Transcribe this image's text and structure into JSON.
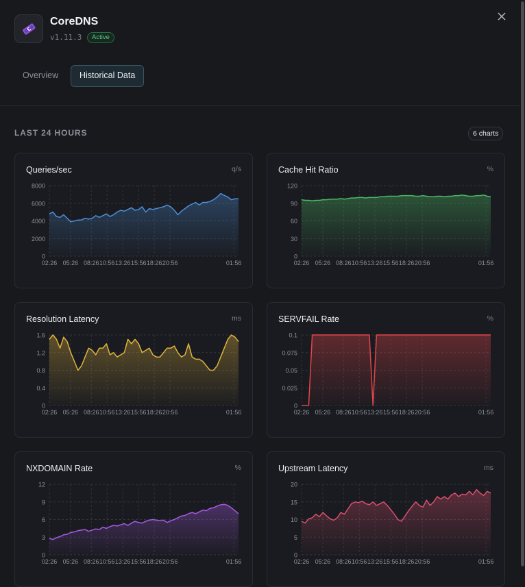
{
  "app": {
    "name": "CoreDNS",
    "version": "v1.11.3",
    "status": "Active",
    "logo_icon": "coredns-logo-icon"
  },
  "tabs": [
    {
      "label": "Overview",
      "active": false
    },
    {
      "label": "Historical Data",
      "active": true
    }
  ],
  "section": {
    "title": "LAST 24 HOURS",
    "count_label": "6 charts"
  },
  "colors": {
    "accent": "#1e2b33",
    "active_badge": "#58c98b"
  },
  "chart_data": [
    {
      "type": "area",
      "title": "Queries/sec",
      "unit": "q/s",
      "color": "#4c8fd8",
      "yticks": [
        0,
        2000,
        4000,
        6000,
        8000
      ],
      "ylim": [
        0,
        8000
      ],
      "xticks": [
        "02:26",
        "05:26",
        "08:26",
        "10:56",
        "13:26",
        "15:56",
        "18:26",
        "20:56",
        "01:56"
      ],
      "values": [
        4800,
        5000,
        4500,
        4400,
        4700,
        4300,
        3900,
        4000,
        4100,
        4100,
        4300,
        4200,
        4300,
        4600,
        4400,
        4600,
        4800,
        4500,
        4700,
        5000,
        5200,
        5100,
        5300,
        5500,
        5200,
        5300,
        5600,
        5000,
        5400,
        5300,
        5400,
        5500,
        5600,
        5800,
        5600,
        5200,
        4700,
        5100,
        5400,
        5700,
        5900,
        6100,
        5800,
        6100,
        6100,
        6200,
        6400,
        6700,
        7100,
        6900,
        6700,
        6400,
        6500,
        6500
      ]
    },
    {
      "type": "area",
      "title": "Cache Hit Ratio",
      "unit": "%",
      "color": "#4cba63",
      "yticks": [
        0,
        30,
        60,
        90,
        120
      ],
      "ylim": [
        0,
        120
      ],
      "xticks": [
        "02:26",
        "05:26",
        "08:26",
        "10:56",
        "13:26",
        "15:56",
        "18:26",
        "20:56",
        "01:56"
      ],
      "values": [
        96,
        95,
        95,
        94,
        95,
        95,
        96,
        96,
        97,
        97,
        97,
        98,
        97,
        98,
        99,
        99,
        100,
        100,
        99,
        100,
        100,
        100,
        101,
        101,
        102,
        102,
        102,
        102,
        103,
        103,
        103,
        103,
        102,
        102,
        103,
        102,
        101,
        101,
        102,
        102,
        101,
        102,
        102,
        103,
        103,
        104,
        103,
        102,
        102,
        103,
        103,
        104,
        102,
        101
      ]
    },
    {
      "type": "area",
      "title": "Resolution Latency",
      "unit": "ms",
      "color": "#e0b43c",
      "yticks": [
        0,
        0.4,
        0.8,
        1.2,
        1.6
      ],
      "ylim": [
        0,
        1.6
      ],
      "xticks": [
        "02:26",
        "05:26",
        "08:26",
        "10:56",
        "13:26",
        "15:56",
        "18:26",
        "20:56",
        "01:56"
      ],
      "values": [
        1.5,
        1.6,
        1.5,
        1.3,
        1.55,
        1.45,
        1.2,
        1.0,
        0.8,
        0.9,
        1.1,
        1.3,
        1.25,
        1.15,
        1.3,
        1.3,
        1.4,
        1.15,
        1.2,
        1.1,
        1.15,
        1.2,
        1.5,
        1.4,
        1.5,
        1.4,
        1.2,
        1.25,
        1.3,
        1.15,
        1.1,
        1.1,
        1.2,
        1.3,
        1.3,
        1.35,
        1.2,
        1.1,
        1.15,
        1.4,
        1.1,
        1.05,
        1.05,
        1.0,
        0.9,
        0.8,
        0.8,
        0.9,
        1.1,
        1.3,
        1.5,
        1.6,
        1.55,
        1.45
      ]
    },
    {
      "type": "line",
      "title": "SERVFAIL Rate",
      "unit": "%",
      "color": "#e0454a",
      "yticks": [
        0,
        0.025,
        0.05,
        0.075,
        0.1
      ],
      "ylim": [
        0,
        0.1
      ],
      "xticks": [
        "02:26",
        "05:26",
        "08:26",
        "10:56",
        "13:26",
        "15:56",
        "18:26",
        "20:56",
        "01:56"
      ],
      "values": [
        0,
        0,
        0,
        0.1,
        0.1,
        0.1,
        0.1,
        0.1,
        0.1,
        0.1,
        0.1,
        0.1,
        0.1,
        0.1,
        0.1,
        0.1,
        0.1,
        0.1,
        0.1,
        0.1,
        0,
        0.1,
        0.1,
        0.1,
        0.1,
        0.1,
        0.1,
        0.1,
        0.1,
        0.1,
        0.1,
        0.1,
        0.1,
        0.1,
        0.1,
        0.1,
        0.1,
        0.1,
        0.1,
        0.1,
        0.1,
        0.1,
        0.1,
        0.1,
        0.1,
        0.1,
        0.1,
        0.1,
        0.1,
        0.1,
        0.1,
        0.1,
        0.1,
        0.1
      ]
    },
    {
      "type": "area",
      "title": "NXDOMAIN Rate",
      "unit": "%",
      "color": "#a55be2",
      "yticks": [
        0,
        3,
        6,
        9,
        12
      ],
      "ylim": [
        0,
        12
      ],
      "xticks": [
        "02:26",
        "05:26",
        "08:26",
        "10:56",
        "13:26",
        "15:56",
        "18:26",
        "20:56",
        "01:56"
      ],
      "values": [
        2.8,
        2.6,
        2.9,
        3.1,
        3.4,
        3.5,
        3.8,
        3.9,
        4.1,
        4.2,
        4.3,
        4.0,
        4.2,
        4.4,
        4.3,
        4.7,
        4.5,
        4.8,
        5.0,
        4.9,
        5.1,
        5.3,
        5.0,
        5.4,
        5.7,
        5.5,
        5.4,
        5.7,
        5.9,
        6.0,
        5.9,
        5.8,
        5.9,
        5.5,
        5.8,
        6.0,
        6.3,
        6.6,
        6.7,
        7.0,
        7.2,
        7.0,
        7.3,
        7.6,
        7.5,
        7.9,
        8.0,
        8.3,
        8.5,
        8.6,
        8.4,
        8.0,
        7.5,
        7.0
      ]
    },
    {
      "type": "area",
      "title": "Upstream Latency",
      "unit": "ms",
      "color": "#d8506e",
      "yticks": [
        0,
        5,
        10,
        15,
        20
      ],
      "ylim": [
        0,
        20
      ],
      "xticks": [
        "02:26",
        "05:26",
        "08:26",
        "10:56",
        "13:26",
        "15:56",
        "18:26",
        "20:56",
        "01:56"
      ],
      "values": [
        9.5,
        9.0,
        10.2,
        10.5,
        11.5,
        10.8,
        12.0,
        11.0,
        10.2,
        9.8,
        10.5,
        12.0,
        11.5,
        13.0,
        14.5,
        15.0,
        14.8,
        15.2,
        14.5,
        14.2,
        15.0,
        14.0,
        14.5,
        15.0,
        14.0,
        12.8,
        11.5,
        10.0,
        9.5,
        11.0,
        12.5,
        13.8,
        15.0,
        14.0,
        13.5,
        15.5,
        14.0,
        15.0,
        16.5,
        15.8,
        16.5,
        15.8,
        17.0,
        17.5,
        16.5,
        17.2,
        17.0,
        18.0,
        17.0,
        18.5,
        17.5,
        16.8,
        18.0,
        17.5
      ]
    }
  ]
}
